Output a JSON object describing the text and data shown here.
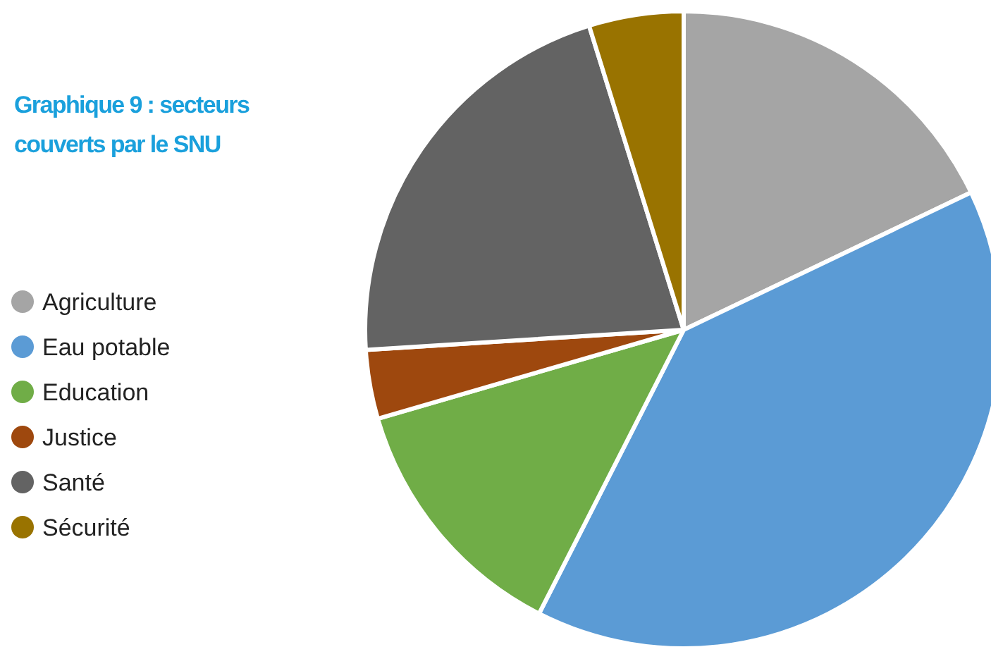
{
  "chart_data": {
    "type": "pie",
    "title": "Graphique 9 : secteurs couverts par le SNU",
    "categories": [
      "Agriculture",
      "Eau potable",
      "Education",
      "Justice",
      "Santé",
      "Sécurité"
    ],
    "values": [
      17.9,
      39.6,
      13.0,
      3.5,
      21.2,
      4.8
    ],
    "colors": [
      "#a5a5a5",
      "#5b9bd5",
      "#70ad47",
      "#9e480e",
      "#636363",
      "#997300"
    ],
    "legend": "left"
  }
}
